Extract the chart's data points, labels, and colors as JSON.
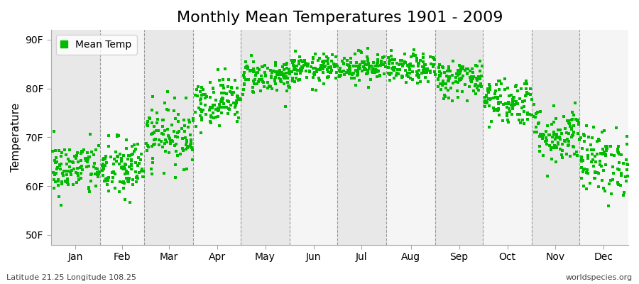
{
  "title": "Monthly Mean Temperatures 1901 - 2009",
  "ylabel": "Temperature",
  "xlabel_labels": [
    "Jan",
    "Feb",
    "Mar",
    "Apr",
    "May",
    "Jun",
    "Jul",
    "Aug",
    "Sep",
    "Oct",
    "Nov",
    "Dec"
  ],
  "ytick_labels": [
    "50F",
    "60F",
    "70F",
    "80F",
    "90F"
  ],
  "ytick_values": [
    50,
    60,
    70,
    80,
    90
  ],
  "ylim": [
    48,
    92
  ],
  "xlim": [
    0,
    366
  ],
  "legend_label": "Mean Temp",
  "dot_color": "#00bb00",
  "bg_color": "#ffffff",
  "plot_bg_color": "#f0f0f0",
  "footer_left": "Latitude 21.25 Longitude 108.25",
  "footer_right": "worldspecies.org",
  "title_fontsize": 16,
  "label_fontsize": 11,
  "tick_fontsize": 10,
  "monthly_mean": [
    63.5,
    63.5,
    70.5,
    77.5,
    82.5,
    84.0,
    84.5,
    84.0,
    82.0,
    77.5,
    70.5,
    65.0
  ],
  "monthly_std": [
    2.8,
    3.2,
    3.2,
    2.5,
    1.8,
    1.5,
    1.5,
    1.5,
    2.0,
    2.5,
    3.0,
    3.5
  ],
  "n_years": 109,
  "seed": 42,
  "month_days": [
    31,
    28,
    31,
    30,
    31,
    30,
    31,
    31,
    30,
    31,
    30,
    31
  ]
}
